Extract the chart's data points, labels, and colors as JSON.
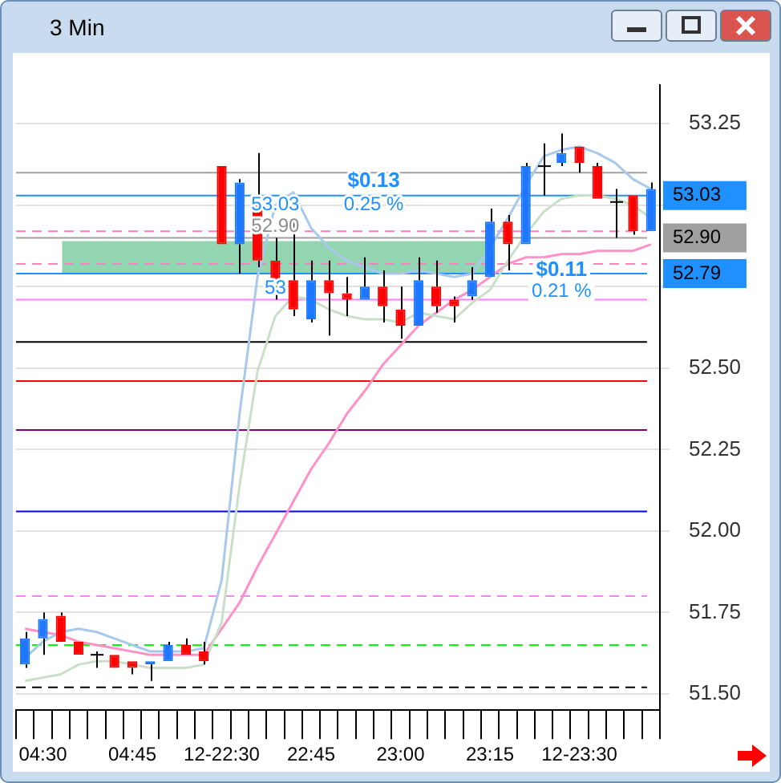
{
  "chart_data": {
    "type": "candlestick",
    "title": "3 Min",
    "categories": [
      null,
      "04:30",
      null,
      null,
      null,
      null,
      "04:45",
      null,
      null,
      null,
      null,
      "12-22:30",
      null,
      null,
      null,
      null,
      "22:45",
      null,
      null,
      null,
      null,
      "23:00",
      null,
      null,
      null,
      null,
      "23:15",
      null,
      null,
      null,
      null,
      "12-23:30",
      null,
      null,
      null,
      null
    ],
    "ohlc": [
      [
        51.59,
        51.69,
        51.58,
        51.67
      ],
      [
        51.67,
        51.75,
        51.62,
        51.73
      ],
      [
        51.74,
        51.75,
        51.66,
        51.66
      ],
      [
        51.66,
        51.66,
        51.62,
        51.62
      ],
      [
        51.62,
        51.63,
        51.58,
        51.62
      ],
      [
        51.62,
        51.62,
        51.58,
        51.58
      ],
      [
        51.6,
        51.6,
        51.56,
        51.58
      ],
      [
        51.59,
        51.6,
        51.54,
        51.6
      ],
      [
        51.6,
        51.66,
        51.6,
        51.65
      ],
      [
        51.65,
        51.67,
        51.62,
        51.62
      ],
      [
        51.63,
        51.66,
        51.59,
        51.6
      ],
      [
        53.12,
        53.12,
        52.88,
        52.88
      ],
      [
        52.88,
        53.08,
        52.79,
        53.07
      ],
      [
        53.01,
        53.16,
        52.81,
        52.83
      ],
      [
        52.83,
        52.9,
        52.71,
        52.77
      ],
      [
        52.77,
        52.95,
        52.66,
        52.68
      ],
      [
        52.65,
        52.83,
        52.64,
        52.77
      ],
      [
        52.77,
        52.83,
        52.6,
        52.73
      ],
      [
        52.73,
        52.78,
        52.66,
        52.71
      ],
      [
        52.71,
        52.84,
        52.71,
        52.75
      ],
      [
        52.75,
        52.8,
        52.64,
        52.69
      ],
      [
        52.68,
        52.75,
        52.59,
        52.63
      ],
      [
        52.63,
        52.84,
        52.63,
        52.77
      ],
      [
        52.75,
        52.83,
        52.67,
        52.69
      ],
      [
        52.71,
        52.72,
        52.64,
        52.69
      ],
      [
        52.72,
        52.81,
        52.71,
        52.77
      ],
      [
        52.78,
        52.99,
        52.78,
        52.95
      ],
      [
        52.95,
        52.97,
        52.8,
        52.88
      ],
      [
        52.88,
        53.13,
        52.88,
        53.12
      ],
      [
        53.12,
        53.19,
        53.03,
        53.12
      ],
      [
        53.13,
        53.22,
        53.12,
        53.16
      ],
      [
        53.18,
        53.18,
        53.1,
        53.13
      ],
      [
        53.12,
        53.13,
        53.02,
        53.02
      ],
      [
        53.01,
        53.05,
        52.9,
        53.01
      ],
      [
        53.03,
        53.03,
        52.91,
        52.92
      ],
      [
        52.92,
        53.07,
        52.92,
        53.05
      ]
    ],
    "colors": [
      "#1e78ff",
      "#1e78ff",
      "#ff0000",
      "#ff0000",
      "#000000",
      "#ff0000",
      "#ff0000",
      "#1e78ff",
      "#1e78ff",
      "#ff0000",
      "#ff0000",
      "#ff0000",
      "#1e78ff",
      "#ff0000",
      "#ff0000",
      "#ff0000",
      "#1e78ff",
      "#ff0000",
      "#ff0000",
      "#1e78ff",
      "#ff0000",
      "#ff0000",
      "#1e78ff",
      "#ff0000",
      "#ff0000",
      "#1e78ff",
      "#1e78ff",
      "#ff0000",
      "#1e78ff",
      "#000000",
      "#1e78ff",
      "#ff0000",
      "#ff0000",
      "#000000",
      "#ff0000",
      "#1e78ff"
    ],
    "series": [
      {
        "type": "line",
        "color": "#a8c8ec",
        "values": [
          51.61,
          51.66,
          51.69,
          51.7,
          51.69,
          51.67,
          51.65,
          51.63,
          51.63,
          51.63,
          51.64,
          51.85,
          52.36,
          52.78,
          53.0,
          53.04,
          52.93,
          52.87,
          52.83,
          52.81,
          52.79,
          52.79,
          52.8,
          52.79,
          52.78,
          52.79,
          52.87,
          52.96,
          53.06,
          53.15,
          53.17,
          53.18,
          53.16,
          53.13,
          53.08,
          53.05
        ]
      },
      {
        "type": "line",
        "color": "#c8e0c8",
        "values": [
          51.54,
          51.55,
          51.56,
          51.59,
          51.6,
          51.6,
          51.59,
          51.58,
          51.58,
          51.58,
          51.59,
          51.72,
          52.14,
          52.49,
          52.66,
          52.72,
          52.71,
          52.68,
          52.66,
          52.65,
          52.65,
          52.64,
          52.67,
          52.66,
          52.65,
          52.7,
          52.74,
          52.83,
          52.91,
          52.98,
          53.02,
          53.03,
          53.03,
          53.02,
          53.0,
          52.96
        ]
      },
      {
        "type": "line",
        "color": "#ff90c8",
        "values": [
          51.7,
          51.69,
          51.68,
          51.66,
          51.65,
          51.64,
          51.63,
          51.62,
          51.62,
          51.62,
          51.62,
          51.7,
          51.78,
          51.89,
          51.99,
          52.09,
          52.19,
          52.27,
          52.36,
          52.43,
          52.51,
          52.57,
          52.63,
          52.67,
          52.71,
          52.74,
          52.78,
          52.82,
          52.84,
          52.84,
          52.85,
          52.85,
          52.86,
          52.86,
          52.86,
          52.88
        ]
      }
    ],
    "ylim": [
      51.45,
      53.37
    ],
    "yticks": [
      {
        "value": 51.5,
        "label": "51.50"
      },
      {
        "value": 51.75,
        "label": "51.75"
      },
      {
        "value": 52.0,
        "label": "52.00"
      },
      {
        "value": 52.25,
        "label": "52.25"
      },
      {
        "value": 52.5,
        "label": "52.50"
      },
      {
        "value": 52.75,
        "label": null
      },
      {
        "value": 53.0,
        "label": null
      },
      {
        "value": 53.25,
        "label": "53.25"
      }
    ],
    "ref_lines": [
      {
        "axis": "y",
        "value": 53.1,
        "color": "#a0a0a0",
        "line_style": "solid"
      },
      {
        "axis": "y",
        "value": 52.9,
        "label": "52.90",
        "color": "#a0a0a0",
        "line_style": "solid"
      },
      {
        "axis": "y",
        "value": 53.03,
        "label": "53.03",
        "color": "#1e90ff",
        "line_style": "solid"
      },
      {
        "axis": "y",
        "value": 52.79,
        "label": "52.79",
        "color": "#1e90ff",
        "line_style": "solid"
      },
      {
        "axis": "y",
        "value": 52.92,
        "color": "#ff80c0",
        "line_style": "dashed"
      },
      {
        "axis": "y",
        "value": 52.82,
        "color": "#ff80c0",
        "line_style": "dashed"
      },
      {
        "axis": "y",
        "value": 52.71,
        "color": "#ff80ff",
        "line_style": "solid"
      },
      {
        "axis": "y",
        "value": 52.58,
        "color": "#000000",
        "line_style": "solid"
      },
      {
        "axis": "y",
        "value": 52.46,
        "color": "#ff0000",
        "line_style": "solid"
      },
      {
        "axis": "y",
        "value": 52.31,
        "color": "#800080",
        "line_style": "solid"
      },
      {
        "axis": "y",
        "value": 52.06,
        "color": "#0000ff",
        "line_style": "solid"
      },
      {
        "axis": "y",
        "value": 51.8,
        "color": "#ff80ff",
        "line_style": "dashed"
      },
      {
        "axis": "y",
        "value": 51.65,
        "color": "#00ff00",
        "line_style": "dashed"
      },
      {
        "axis": "y",
        "value": 51.52,
        "color": "#000000",
        "line_style": "dashed"
      }
    ],
    "bands": [
      {
        "axis": "y",
        "from": 52.79,
        "to": 52.89,
        "color": "#3cb371"
      }
    ],
    "annotations": [
      "$0.13",
      "0.25 %",
      "$0.11",
      "0.21 %",
      "53.03",
      "52.90",
      "53"
    ],
    "grid": true,
    "legend": false
  }
}
